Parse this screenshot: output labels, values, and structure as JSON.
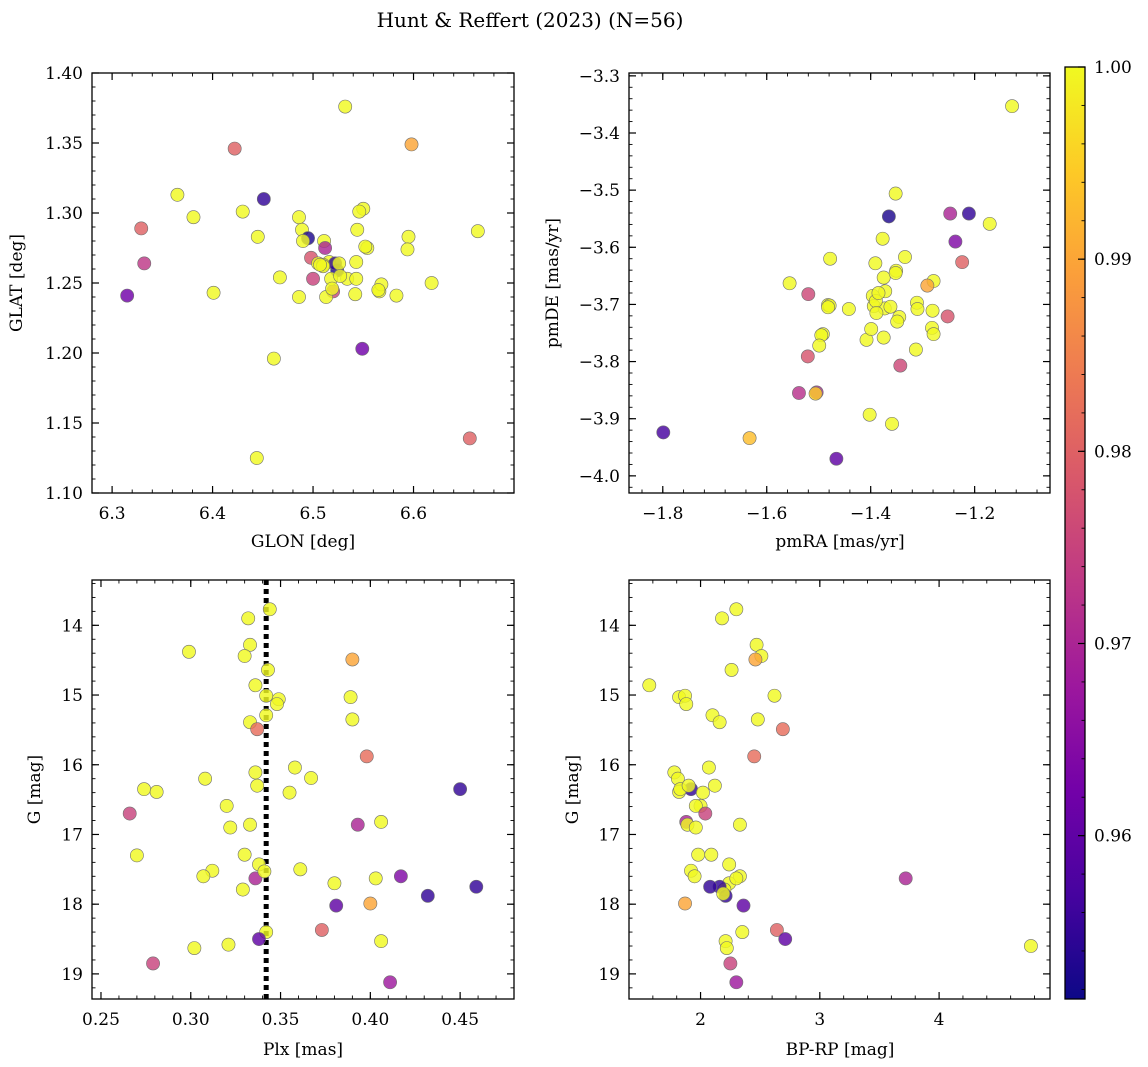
{
  "figure": {
    "title": "Hunt & Reffert (2023) (N=56)"
  },
  "colorbar": {
    "vmin": 0.9515,
    "vmax": 1.0,
    "ticks": [
      0.96,
      0.97,
      0.98,
      0.99,
      1.0
    ],
    "tick_labels": [
      "0.96",
      "0.97",
      "0.98",
      "0.99",
      "1.00"
    ],
    "stops": [
      "#0d0887",
      "#46039f",
      "#7201a8",
      "#9c179e",
      "#bd3786",
      "#d8576b",
      "#ed7953",
      "#fb9f3a",
      "#fdca26",
      "#f0f921"
    ]
  },
  "chart_data": [
    {
      "id": "glon_glat",
      "type": "scatter",
      "xlabel": "GLON [deg]",
      "ylabel": "GLAT [deg]",
      "xlim": [
        6.28,
        6.7
      ],
      "ylim": [
        1.1,
        1.4
      ],
      "xticks": [
        6.3,
        6.4,
        6.5,
        6.6
      ],
      "xtick_labels": [
        "6.3",
        "6.4",
        "6.5",
        "6.6"
      ],
      "yticks": [
        1.1,
        1.15,
        1.2,
        1.25,
        1.3,
        1.35,
        1.4
      ],
      "ytick_labels": [
        "1.10",
        "1.15",
        "1.20",
        "1.25",
        "1.30",
        "1.35",
        "1.40"
      ],
      "x": [
        6.532,
        6.598,
        6.422,
        6.365,
        6.381,
        6.43,
        6.451,
        6.329,
        6.445,
        6.486,
        6.489,
        6.495,
        6.49,
        6.511,
        6.55,
        6.546,
        6.544,
        6.595,
        6.594,
        6.664,
        6.554,
        6.332,
        6.315,
        6.401,
        6.467,
        6.486,
        6.5,
        6.498,
        6.505,
        6.512,
        6.516,
        6.52,
        6.524,
        6.518,
        6.522,
        6.51,
        6.526,
        6.534,
        6.543,
        6.566,
        6.583,
        6.568,
        6.565,
        6.543,
        6.513,
        6.519,
        6.51,
        6.507,
        6.542,
        6.618,
        6.461,
        6.549,
        6.444,
        6.656,
        6.527,
        6.552
      ],
      "y": [
        1.376,
        1.349,
        1.346,
        1.313,
        1.297,
        1.301,
        1.31,
        1.289,
        1.283,
        1.297,
        1.288,
        1.282,
        1.28,
        1.28,
        1.303,
        1.301,
        1.288,
        1.283,
        1.274,
        1.287,
        1.275,
        1.264,
        1.241,
        1.243,
        1.254,
        1.24,
        1.253,
        1.268,
        1.264,
        1.275,
        1.265,
        1.244,
        1.259,
        1.253,
        1.264,
        1.263,
        1.264,
        1.253,
        1.265,
        1.244,
        1.241,
        1.249,
        1.245,
        1.253,
        1.24,
        1.246,
        1.262,
        1.263,
        1.242,
        1.25,
        1.196,
        1.203,
        1.125,
        1.139,
        1.255,
        1.276
      ],
      "c": [
        1.0,
        0.99,
        0.98,
        1.0,
        1.0,
        1.0,
        0.955,
        0.98,
        1.0,
        1.0,
        1.0,
        0.953,
        1.0,
        1.0,
        1.0,
        1.0,
        1.0,
        1.0,
        1.0,
        1.0,
        1.0,
        0.973,
        0.962,
        1.0,
        1.0,
        1.0,
        0.975,
        0.978,
        1.0,
        0.97,
        1.0,
        0.976,
        0.953,
        1.0,
        0.955,
        1.0,
        1.0,
        1.0,
        1.0,
        1.0,
        1.0,
        1.0,
        1.0,
        1.0,
        1.0,
        1.0,
        1.0,
        1.0,
        1.0,
        1.0,
        1.0,
        0.962,
        1.0,
        0.98,
        1.0,
        1.0
      ]
    },
    {
      "id": "pmra_pmde",
      "type": "scatter",
      "xlabel": "pmRA [mas/yr]",
      "ylabel": "pmDE [mas/yr]",
      "xlim": [
        -1.865,
        -1.055
      ],
      "ylim": [
        -4.03,
        -3.295
      ],
      "xticks": [
        -1.8,
        -1.6,
        -1.4,
        -1.2
      ],
      "xtick_labels": [
        "−1.8",
        "−1.6",
        "−1.4",
        "−1.2"
      ],
      "yticks": [
        -4.0,
        -3.9,
        -3.8,
        -3.7,
        -3.6,
        -3.5,
        -3.4,
        -3.3
      ],
      "ytick_labels": [
        "−4.0",
        "−3.9",
        "−3.8",
        "−3.7",
        "−3.6",
        "−3.5",
        "−3.4",
        "−3.3"
      ],
      "x": [
        -1.128,
        -1.352,
        -1.365,
        -1.211,
        -1.247,
        -1.171,
        -1.237,
        -1.224,
        -1.377,
        -1.334,
        -1.478,
        -1.391,
        -1.351,
        -1.375,
        -1.556,
        -1.52,
        -1.372,
        -1.396,
        -1.394,
        -1.442,
        -1.373,
        -1.362,
        -1.39,
        -1.279,
        -1.311,
        -1.291,
        -1.31,
        -1.281,
        -1.252,
        -1.282,
        -1.345,
        -1.482,
        -1.492,
        -1.495,
        -1.499,
        -1.521,
        -1.375,
        -1.408,
        -1.399,
        -1.279,
        -1.313,
        -1.343,
        -1.538,
        -1.504,
        -1.506,
        -1.402,
        -1.359,
        -1.633,
        -1.799,
        -1.466,
        -1.385,
        -1.352,
        -1.479,
        -1.389,
        -1.349,
        -1.482
      ],
      "y": [
        -3.353,
        -3.506,
        -3.546,
        -3.541,
        -3.541,
        -3.559,
        -3.59,
        -3.626,
        -3.585,
        -3.617,
        -3.62,
        -3.628,
        -3.641,
        -3.653,
        -3.663,
        -3.682,
        -3.677,
        -3.685,
        -3.703,
        -3.708,
        -3.707,
        -3.704,
        -3.694,
        -3.659,
        -3.697,
        -3.667,
        -3.708,
        -3.711,
        -3.721,
        -3.741,
        -3.722,
        -3.701,
        -3.752,
        -3.754,
        -3.772,
        -3.791,
        -3.758,
        -3.762,
        -3.743,
        -3.752,
        -3.779,
        -3.807,
        -3.855,
        -3.854,
        -3.856,
        -3.893,
        -3.909,
        -3.934,
        -3.924,
        -3.97,
        -3.68,
        -3.645,
        -3.702,
        -3.715,
        -3.73,
        -3.705
      ],
      "c": [
        1.0,
        1.0,
        0.953,
        0.955,
        0.97,
        1.0,
        0.964,
        0.98,
        1.0,
        1.0,
        1.0,
        1.0,
        1.0,
        1.0,
        1.0,
        0.976,
        1.0,
        1.0,
        1.0,
        1.0,
        1.0,
        1.0,
        1.0,
        1.0,
        1.0,
        0.99,
        1.0,
        1.0,
        0.978,
        1.0,
        1.0,
        1.0,
        1.0,
        1.0,
        1.0,
        0.978,
        1.0,
        1.0,
        1.0,
        1.0,
        1.0,
        0.976,
        0.972,
        0.97,
        0.995,
        1.0,
        1.0,
        0.993,
        0.957,
        0.96,
        1.0,
        1.0,
        1.0,
        1.0,
        1.0,
        1.0
      ]
    },
    {
      "id": "plx_g",
      "type": "scatter",
      "xlabel": "Plx [mas]",
      "ylabel": "G [mag]",
      "xlim": [
        0.245,
        0.48
      ],
      "ylim": [
        19.36,
        13.35
      ],
      "invert_y": true,
      "reference_line": {
        "axis": "x",
        "value": 0.342,
        "style": "dotted",
        "color": "#000000"
      },
      "xticks": [
        0.25,
        0.3,
        0.35,
        0.4,
        0.45
      ],
      "xtick_labels": [
        "0.25",
        "0.30",
        "0.35",
        "0.40",
        "0.45"
      ],
      "yticks": [
        14,
        15,
        16,
        17,
        18,
        19
      ],
      "ytick_labels": [
        "14",
        "15",
        "16",
        "17",
        "18",
        "19"
      ],
      "x": [
        0.344,
        0.332,
        0.333,
        0.299,
        0.33,
        0.39,
        0.343,
        0.336,
        0.349,
        0.342,
        0.348,
        0.389,
        0.342,
        0.39,
        0.333,
        0.337,
        0.398,
        0.358,
        0.274,
        0.281,
        0.336,
        0.308,
        0.367,
        0.355,
        0.337,
        0.32,
        0.266,
        0.406,
        0.393,
        0.322,
        0.333,
        0.27,
        0.45,
        0.33,
        0.312,
        0.361,
        0.307,
        0.403,
        0.417,
        0.38,
        0.329,
        0.459,
        0.432,
        0.381,
        0.338,
        0.4,
        0.406,
        0.373,
        0.342,
        0.338,
        0.321,
        0.302,
        0.279,
        0.411,
        0.336,
        0.341
      ],
      "y": [
        13.77,
        13.9,
        14.28,
        14.38,
        14.44,
        14.49,
        14.64,
        14.86,
        15.06,
        15.01,
        15.13,
        15.03,
        15.29,
        15.35,
        15.39,
        15.49,
        15.88,
        16.04,
        16.35,
        16.39,
        16.11,
        16.2,
        16.19,
        16.4,
        16.3,
        16.59,
        16.7,
        16.82,
        16.86,
        16.9,
        16.86,
        17.3,
        16.35,
        17.29,
        17.52,
        17.5,
        17.6,
        17.63,
        17.6,
        17.7,
        17.79,
        17.75,
        17.88,
        18.02,
        17.43,
        17.99,
        18.53,
        18.37,
        18.4,
        18.5,
        18.58,
        18.63,
        18.85,
        19.12,
        17.63,
        17.53
      ],
      "c": [
        1.0,
        1.0,
        1.0,
        1.0,
        1.0,
        0.99,
        1.0,
        1.0,
        1.0,
        1.0,
        1.0,
        1.0,
        1.0,
        1.0,
        1.0,
        0.982,
        0.982,
        1.0,
        1.0,
        1.0,
        1.0,
        1.0,
        1.0,
        1.0,
        1.0,
        1.0,
        0.975,
        1.0,
        0.97,
        1.0,
        1.0,
        1.0,
        0.955,
        1.0,
        1.0,
        1.0,
        1.0,
        1.0,
        0.964,
        1.0,
        1.0,
        0.955,
        0.955,
        0.96,
        1.0,
        0.99,
        1.0,
        0.98,
        1.0,
        0.96,
        1.0,
        1.0,
        0.975,
        0.968,
        0.97,
        1.0
      ]
    },
    {
      "id": "bprp_g",
      "type": "scatter",
      "xlabel": "BP-RP [mag]",
      "ylabel": "G [mag]",
      "xlim": [
        1.4,
        4.93
      ],
      "ylim": [
        19.36,
        13.35
      ],
      "invert_y": true,
      "xticks": [
        2,
        3,
        4
      ],
      "xtick_labels": [
        "2",
        "3",
        "4"
      ],
      "yticks": [
        14,
        15,
        16,
        17,
        18,
        19
      ],
      "ytick_labels": [
        "14",
        "15",
        "16",
        "17",
        "18",
        "19"
      ],
      "x": [
        2.3,
        2.18,
        2.47,
        2.51,
        2.46,
        2.26,
        1.57,
        1.82,
        1.87,
        1.88,
        2.62,
        2.69,
        2.1,
        2.16,
        2.48,
        2.45,
        2.07,
        1.78,
        1.81,
        1.82,
        1.92,
        2.02,
        1.83,
        1.9,
        2.12,
        2.0,
        1.96,
        2.04,
        1.88,
        1.89,
        1.96,
        2.33,
        1.98,
        2.09,
        1.92,
        2.24,
        2.33,
        2.24,
        2.2,
        2.3,
        1.95,
        2.16,
        2.36,
        3.72,
        2.08,
        2.21,
        2.35,
        1.87,
        2.64,
        2.71,
        2.21,
        2.22,
        2.25,
        4.77,
        2.3,
        2.19
      ],
      "y": [
        13.77,
        13.9,
        14.28,
        14.44,
        14.49,
        14.64,
        14.86,
        15.03,
        15.01,
        15.13,
        15.01,
        15.49,
        15.29,
        15.39,
        15.35,
        15.88,
        16.04,
        16.11,
        16.2,
        16.39,
        16.35,
        16.4,
        16.35,
        16.3,
        16.3,
        16.59,
        16.59,
        16.7,
        16.82,
        16.86,
        16.9,
        16.86,
        17.29,
        17.29,
        17.52,
        17.43,
        17.6,
        17.7,
        17.79,
        17.63,
        17.6,
        17.75,
        18.02,
        17.63,
        17.75,
        17.88,
        18.4,
        17.99,
        18.37,
        18.5,
        18.53,
        18.63,
        18.85,
        18.6,
        19.12,
        17.85
      ],
      "c": [
        1.0,
        1.0,
        1.0,
        1.0,
        0.99,
        1.0,
        1.0,
        1.0,
        1.0,
        1.0,
        1.0,
        0.982,
        1.0,
        1.0,
        1.0,
        0.982,
        1.0,
        1.0,
        1.0,
        1.0,
        0.955,
        1.0,
        1.0,
        1.0,
        1.0,
        1.0,
        1.0,
        0.975,
        0.97,
        1.0,
        1.0,
        1.0,
        1.0,
        1.0,
        1.0,
        1.0,
        1.0,
        1.0,
        1.0,
        1.0,
        1.0,
        0.955,
        0.96,
        0.97,
        0.955,
        0.955,
        1.0,
        0.99,
        0.98,
        0.96,
        1.0,
        1.0,
        0.975,
        1.0,
        0.968,
        1.0
      ]
    }
  ]
}
